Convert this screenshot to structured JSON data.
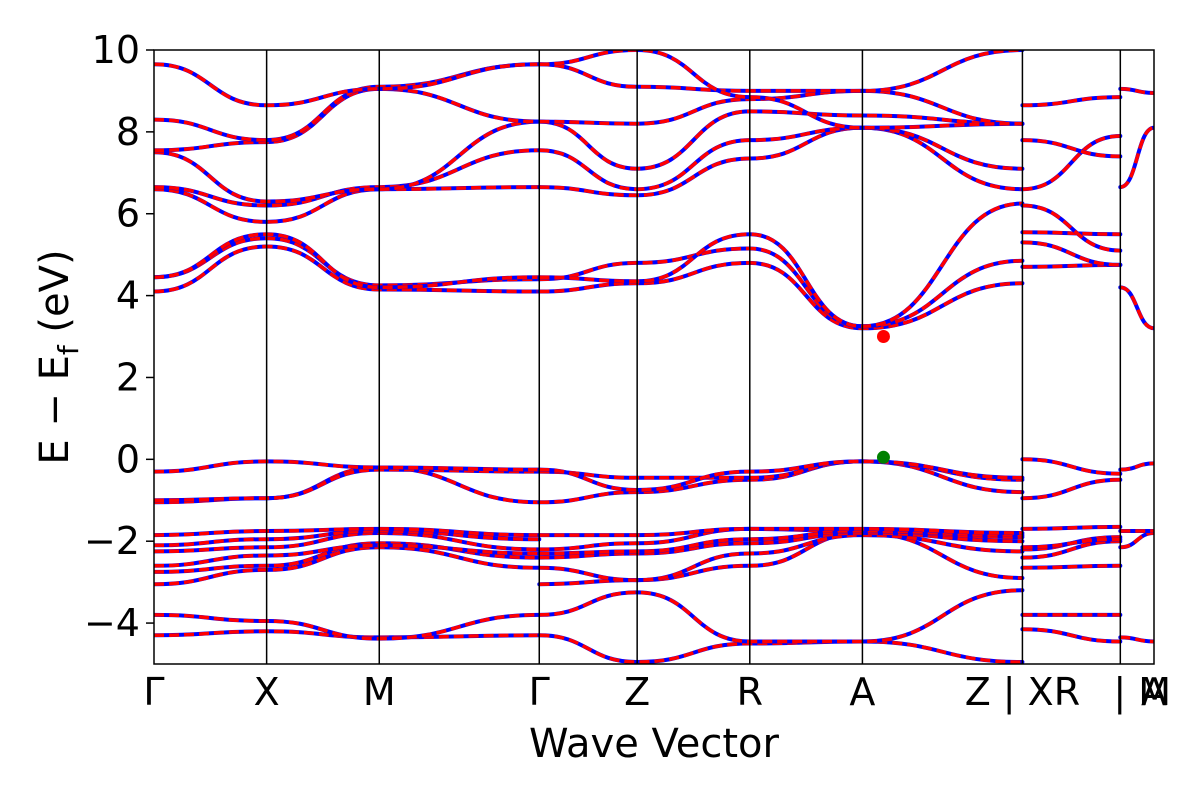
{
  "chart_data": {
    "type": "line",
    "title": "",
    "xlabel": "Wave Vector",
    "ylabel": "E − E",
    "ylabel_sub": "f",
    "ylabel_unit": " (eV)",
    "ylim": [
      -5,
      10
    ],
    "xlim": [
      0,
      9.5
    ],
    "grid": false,
    "legend": "none",
    "yticks": [
      {
        "value": 10,
        "label": "10"
      },
      {
        "value": 8,
        "label": "8"
      },
      {
        "value": 6,
        "label": "6"
      },
      {
        "value": 4,
        "label": "4"
      },
      {
        "value": 2,
        "label": "2"
      },
      {
        "value": 0,
        "label": "0"
      },
      {
        "value": -2,
        "label": "−2"
      },
      {
        "value": -4,
        "label": "−4"
      }
    ],
    "kpoints": [
      {
        "x": 0.0,
        "label": "Γ"
      },
      {
        "x": 1.07,
        "label": "X"
      },
      {
        "x": 2.14,
        "label": "M"
      },
      {
        "x": 3.66,
        "label": "Γ"
      },
      {
        "x": 4.59,
        "label": "Z"
      },
      {
        "x": 5.66,
        "label": "R"
      },
      {
        "x": 6.73,
        "label": "A"
      },
      {
        "x": 8.25,
        "label": "Z | XR"
      },
      {
        "x": 9.18,
        "label": "| M"
      },
      {
        "x": 9.5,
        "label": "A"
      }
    ],
    "series_colors": {
      "primary": "#ff0000",
      "secondary": "#0000ff"
    },
    "markers": [
      {
        "name": "cbm",
        "x": 6.93,
        "y": 3.0,
        "color": "#ff0000"
      },
      {
        "name": "vbm",
        "x": 6.93,
        "y": 0.05,
        "color": "#008000"
      }
    ],
    "segments": [
      {
        "x": [
          0.0,
          1.07,
          2.14,
          3.66
        ],
        "bands": [
          [
            -4.3,
            -4.2,
            -4.35,
            -4.3
          ],
          [
            -3.8,
            -3.95,
            -4.38,
            -3.8
          ],
          [
            -3.05,
            -2.7,
            -2.15,
            -2.65
          ],
          [
            -2.75,
            -2.6,
            -2.05,
            -2.4
          ],
          [
            -2.6,
            -2.35,
            -2.1,
            -2.3
          ],
          [
            -2.25,
            -2.15,
            -1.8,
            -2.2
          ],
          [
            -2.1,
            -1.95,
            -1.75,
            -1.95
          ],
          [
            -1.85,
            -1.75,
            -1.7,
            -1.85
          ],
          [
            -1.05,
            -0.95,
            -0.2,
            -1.05
          ],
          [
            -1.0,
            -0.95,
            -0.25,
            -0.3
          ],
          [
            -0.3,
            -0.05,
            -0.2,
            -0.25
          ],
          [
            4.1,
            5.2,
            4.15,
            4.1
          ],
          [
            4.45,
            5.4,
            4.25,
            4.4
          ],
          [
            4.45,
            5.5,
            4.2,
            4.45
          ],
          [
            6.6,
            5.8,
            6.6,
            6.65
          ],
          [
            6.65,
            6.2,
            6.65,
            7.55
          ],
          [
            7.5,
            6.3,
            6.6,
            8.25
          ],
          [
            7.55,
            7.75,
            9.05,
            8.25
          ],
          [
            8.3,
            7.8,
            9.1,
            9.65
          ],
          [
            9.65,
            8.65,
            9.05,
            9.65
          ]
        ]
      },
      {
        "x": [
          3.66,
          4.59,
          5.66,
          6.73,
          8.25
        ],
        "bands": [
          [
            -4.3,
            -4.95,
            -4.5,
            -4.45,
            -4.95
          ],
          [
            -3.8,
            -3.25,
            -4.45,
            -4.45,
            -3.2
          ],
          [
            -3.05,
            -2.95,
            -2.6,
            -1.8,
            -2.9
          ],
          [
            -2.65,
            -2.95,
            -2.3,
            -1.85,
            -2.25
          ],
          [
            -2.4,
            -2.3,
            -2.05,
            -1.8,
            -2.0
          ],
          [
            -2.3,
            -2.25,
            -1.95,
            -1.75,
            -1.9
          ],
          [
            -2.2,
            -2.05,
            -1.7,
            -1.75,
            -1.85
          ],
          [
            -1.85,
            -1.85,
            -1.7,
            -1.7,
            -1.8
          ],
          [
            -1.05,
            -0.8,
            -0.5,
            -0.05,
            -0.8
          ],
          [
            -0.3,
            -0.45,
            -0.45,
            -0.05,
            -0.5
          ],
          [
            -0.25,
            -0.75,
            -0.3,
            -0.05,
            -0.45
          ],
          [
            4.1,
            4.3,
            4.8,
            3.2,
            4.3
          ],
          [
            4.4,
            4.8,
            5.15,
            3.25,
            4.85
          ],
          [
            4.45,
            4.35,
            5.5,
            3.25,
            6.25
          ],
          [
            6.65,
            6.45,
            7.35,
            8.1,
            6.6
          ],
          [
            7.55,
            6.6,
            7.8,
            8.1,
            7.1
          ],
          [
            8.25,
            7.1,
            8.5,
            8.4,
            8.2
          ],
          [
            8.25,
            8.2,
            8.8,
            9.0,
            8.2
          ],
          [
            9.65,
            9.1,
            9.0,
            9.0,
            10.0
          ],
          [
            9.65,
            10.0,
            8.85,
            8.1,
            8.2
          ]
        ]
      },
      {
        "x": [
          8.25,
          9.18
        ],
        "bands": [
          [
            -4.15,
            -4.45
          ],
          [
            -3.8,
            -3.8
          ],
          [
            -2.65,
            -2.6
          ],
          [
            -2.4,
            -2.0
          ],
          [
            -2.2,
            -1.9
          ],
          [
            -2.15,
            -1.95
          ],
          [
            -1.7,
            -1.65
          ],
          [
            -0.95,
            -0.5
          ],
          [
            0.0,
            -0.35
          ],
          [
            4.7,
            4.75
          ],
          [
            5.3,
            4.75
          ],
          [
            5.55,
            5.5
          ],
          [
            6.2,
            5.1
          ],
          [
            6.6,
            7.9
          ],
          [
            7.8,
            7.4
          ],
          [
            8.65,
            8.85
          ]
        ]
      },
      {
        "x": [
          9.18,
          9.5
        ],
        "bands": [
          [
            -4.35,
            -4.45
          ],
          [
            -2.15,
            -1.8
          ],
          [
            -1.75,
            -1.75
          ],
          [
            -0.25,
            -0.1
          ],
          [
            4.2,
            3.2
          ],
          [
            6.65,
            8.1
          ],
          [
            9.05,
            8.95
          ]
        ]
      }
    ]
  }
}
